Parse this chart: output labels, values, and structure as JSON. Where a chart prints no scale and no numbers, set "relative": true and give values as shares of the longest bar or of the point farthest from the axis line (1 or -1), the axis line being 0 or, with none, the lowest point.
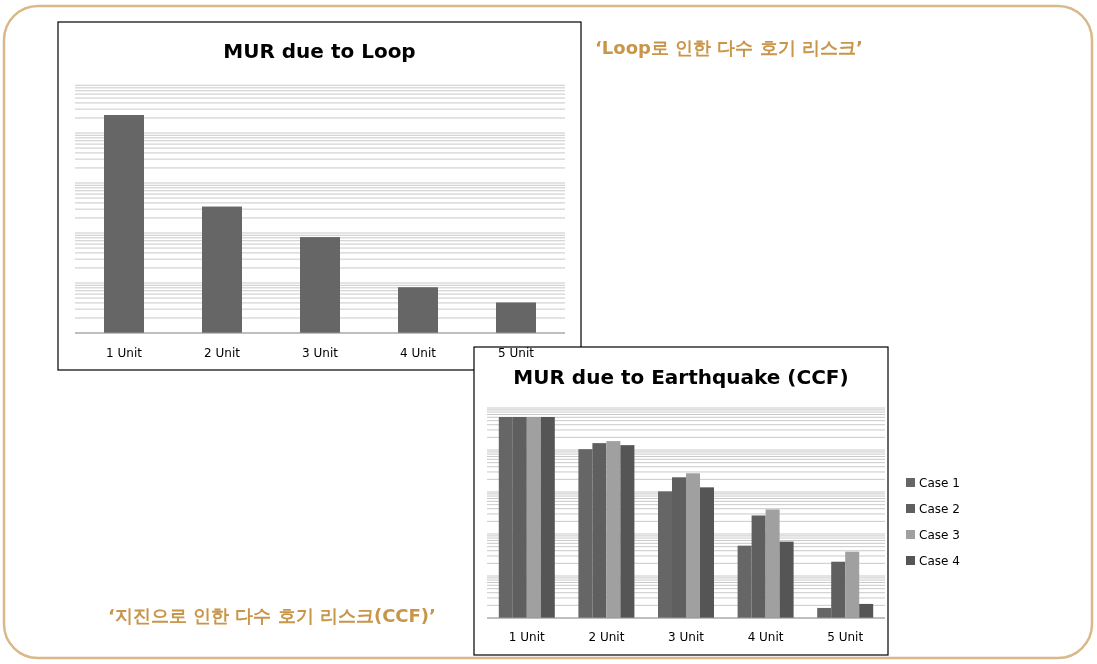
{
  "chart_data": [
    {
      "type": "bar",
      "title": "MUR due to Loop",
      "categories": [
        "1 Unit",
        "2 Unit",
        "3 Unit",
        "4 Unit",
        "5 Unit"
      ],
      "relative": true,
      "grid": true,
      "legend": false,
      "series": [
        {
          "color": "#666666",
          "values": [
            1,
            0.58,
            0.44,
            0.21,
            0.14
          ]
        }
      ],
      "annotations": [
        "‘Loop로 인한 다수 호기 리스크’"
      ]
    },
    {
      "type": "bar",
      "title": "MUR due to Earthquake (CCF)",
      "categories": [
        "1 Unit",
        "2 Unit",
        "3 Unit",
        "4 Unit",
        "5 Unit"
      ],
      "relative": true,
      "grid": true,
      "legend": "right",
      "series": [
        {
          "name": "Case 1",
          "color": "#666666",
          "values": [
            1,
            0.84,
            0.63,
            0.36,
            0.05
          ]
        },
        {
          "name": "Case 2",
          "color": "#5f5f5f",
          "values": [
            1,
            0.87,
            0.7,
            0.51,
            0.28
          ]
        },
        {
          "name": "Case 3",
          "color": "#a0a0a0",
          "values": [
            1,
            0.88,
            0.72,
            0.54,
            0.33
          ]
        },
        {
          "name": "Case 4",
          "color": "#555555",
          "values": [
            1,
            0.86,
            0.65,
            0.38,
            0.07
          ]
        }
      ],
      "annotations": [
        "‘지진으로 인한 다수 호기 리스크(CCF)’"
      ]
    }
  ]
}
